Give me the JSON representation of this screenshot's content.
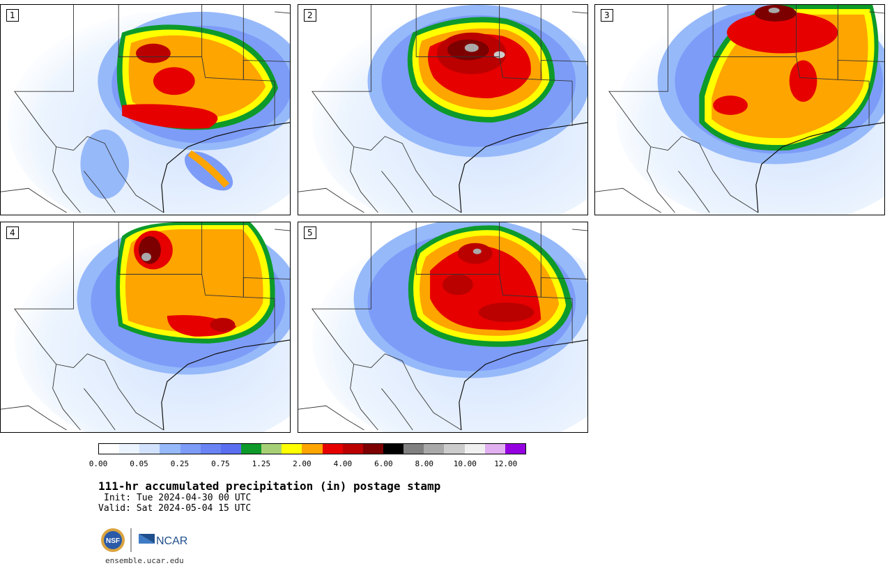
{
  "panels": [
    {
      "label": "1"
    },
    {
      "label": "2"
    },
    {
      "label": "3"
    },
    {
      "label": "4"
    },
    {
      "label": "5"
    }
  ],
  "colorbar": {
    "colors": [
      "#ffffff",
      "#eaf3fe",
      "#d2e2fd",
      "#96b9fa",
      "#7d9cf8",
      "#6a84f4",
      "#5a6ff0",
      "#0d9a2a",
      "#a7d076",
      "#ffff00",
      "#ffa500",
      "#e60000",
      "#bb0000",
      "#7d0000",
      "#000000",
      "#808080",
      "#a9a9a9",
      "#cccccc",
      "#f0f0f0",
      "#e0b0f0",
      "#9500e0"
    ],
    "tick_labels": [
      "0.00",
      "0.05",
      "0.25",
      "0.75",
      "1.25",
      "2.00",
      "4.00",
      "6.00",
      "8.00",
      "10.00",
      "12.00"
    ]
  },
  "title": "111-hr accumulated precipitation (in) postage stamp",
  "init": "Init: Tue 2024-04-30 00 UTC",
  "valid": "Valid: Sat 2024-05-04 15 UTC",
  "logos": {
    "nsf": "NSF",
    "ncar": "NCAR"
  },
  "url": "ensemble.ucar.edu"
}
